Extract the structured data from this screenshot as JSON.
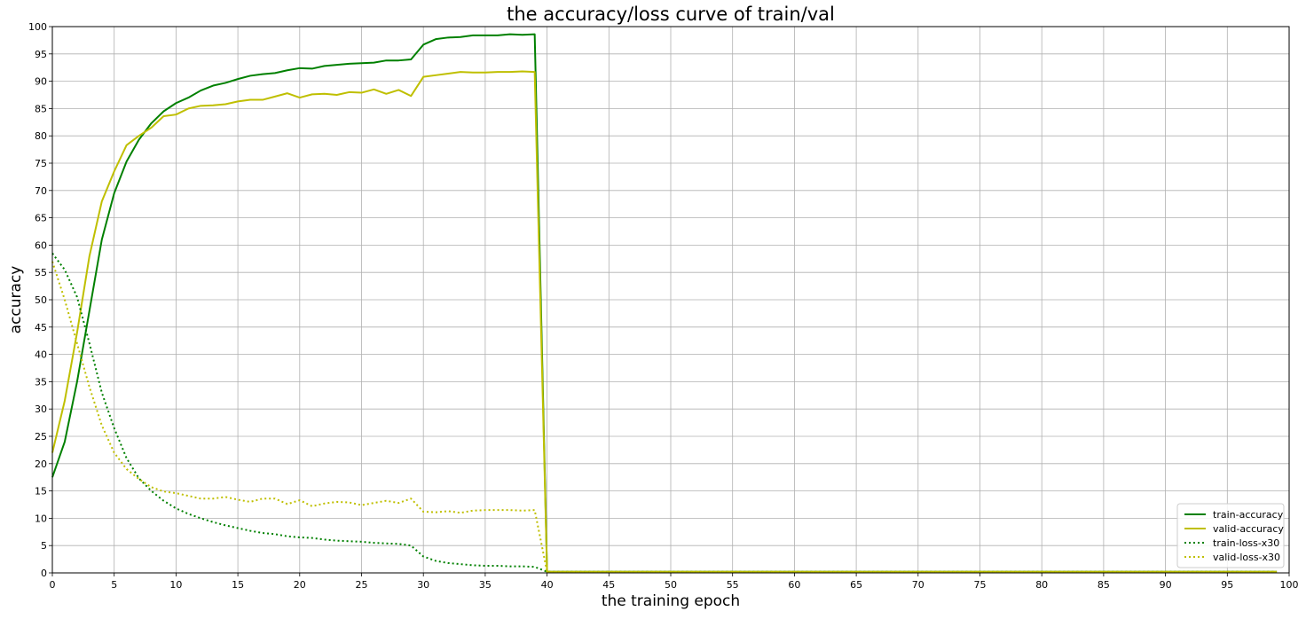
{
  "chart_data": {
    "type": "line",
    "title": "the accuracy/loss curve of train/val",
    "xlabel": "the training epoch",
    "ylabel": "accuracy",
    "xlim": [
      0,
      100
    ],
    "ylim": [
      0,
      100
    ],
    "xticks": [
      0,
      5,
      10,
      15,
      20,
      25,
      30,
      35,
      40,
      45,
      50,
      55,
      60,
      65,
      70,
      75,
      80,
      85,
      90,
      95,
      100
    ],
    "yticks": [
      0,
      5,
      10,
      15,
      20,
      25,
      30,
      35,
      40,
      45,
      50,
      55,
      60,
      65,
      70,
      75,
      80,
      85,
      90,
      95,
      100
    ],
    "grid": true,
    "legend_position": "lower-right",
    "x": [
      0,
      1,
      2,
      3,
      4,
      5,
      6,
      7,
      8,
      9,
      10,
      11,
      12,
      13,
      14,
      15,
      16,
      17,
      18,
      19,
      20,
      21,
      22,
      23,
      24,
      25,
      26,
      27,
      28,
      29,
      30,
      31,
      32,
      33,
      34,
      35,
      36,
      37,
      38,
      39,
      40,
      41,
      42,
      43,
      44,
      45,
      46,
      47,
      48,
      49,
      50,
      51,
      52,
      53,
      54,
      55,
      56,
      57,
      58,
      59,
      60,
      61,
      62,
      63,
      64,
      65,
      66,
      67,
      68,
      69,
      70,
      71,
      72,
      73,
      74,
      75,
      76,
      77,
      78,
      79,
      80,
      81,
      82,
      83,
      84,
      85,
      86,
      87,
      88,
      89,
      90,
      91,
      92,
      93,
      94,
      95,
      96,
      97,
      98,
      99
    ],
    "series": [
      {
        "name": "train-accuracy",
        "color": "#008000",
        "style": "solid",
        "values": [
          17.5,
          24,
          35,
          48,
          61,
          69.5,
          75.3,
          79.3,
          82.3,
          84.5,
          86,
          87,
          88.3,
          89.2,
          89.7,
          90.4,
          91,
          91.3,
          91.5,
          92,
          92.4,
          92.3,
          92.8,
          93,
          93.2,
          93.3,
          93.4,
          93.8,
          93.8,
          94,
          96.7,
          97.7,
          98,
          98.1,
          98.4,
          98.4,
          98.4,
          98.6,
          98.5,
          98.6,
          0.2,
          0.2,
          0.2,
          0.2,
          0.2,
          0.2,
          0.2,
          0.2,
          0.2,
          0.2,
          0.2,
          0.2,
          0.2,
          0.2,
          0.2,
          0.2,
          0.2,
          0.2,
          0.2,
          0.2,
          0.2,
          0.2,
          0.2,
          0.2,
          0.2,
          0.2,
          0.2,
          0.2,
          0.2,
          0.2,
          0.2,
          0.2,
          0.2,
          0.2,
          0.2,
          0.2,
          0.2,
          0.2,
          0.2,
          0.2,
          0.2,
          0.2,
          0.2,
          0.2,
          0.2,
          0.2,
          0.2,
          0.2,
          0.2,
          0.2,
          0.2,
          0.2,
          0.2,
          0.2,
          0.2,
          0.2,
          0.2,
          0.2,
          0.2,
          0.2
        ]
      },
      {
        "name": "valid-accuracy",
        "color": "#bfbf00",
        "style": "solid",
        "values": [
          22,
          31.5,
          44,
          58,
          68,
          73.5,
          78.3,
          80,
          81.5,
          83.6,
          83.9,
          85,
          85.5,
          85.6,
          85.8,
          86.3,
          86.6,
          86.6,
          87.2,
          87.8,
          87,
          87.6,
          87.7,
          87.5,
          88,
          87.9,
          88.5,
          87.7,
          88.4,
          87.3,
          90.8,
          91.1,
          91.4,
          91.7,
          91.6,
          91.6,
          91.7,
          91.7,
          91.8,
          91.7,
          0.2,
          0.2,
          0.2,
          0.2,
          0.2,
          0.2,
          0.2,
          0.2,
          0.2,
          0.2,
          0.2,
          0.2,
          0.2,
          0.2,
          0.2,
          0.2,
          0.2,
          0.2,
          0.2,
          0.2,
          0.2,
          0.2,
          0.2,
          0.2,
          0.2,
          0.2,
          0.2,
          0.2,
          0.2,
          0.2,
          0.2,
          0.2,
          0.2,
          0.2,
          0.2,
          0.2,
          0.2,
          0.2,
          0.2,
          0.2,
          0.2,
          0.2,
          0.2,
          0.2,
          0.2,
          0.2,
          0.2,
          0.2,
          0.2,
          0.2,
          0.2,
          0.2,
          0.2,
          0.2,
          0.2,
          0.2,
          0.2,
          0.2,
          0.2,
          0.2
        ]
      },
      {
        "name": "train-loss-x30",
        "color": "#008000",
        "style": "dotted",
        "values": [
          58.5,
          55.5,
          50.5,
          42,
          33,
          26.5,
          21,
          17.3,
          15,
          13.2,
          11.8,
          10.8,
          10,
          9.3,
          8.7,
          8.2,
          7.7,
          7.3,
          7.1,
          6.7,
          6.5,
          6.4,
          6.1,
          5.9,
          5.8,
          5.7,
          5.5,
          5.4,
          5.3,
          5,
          3,
          2.2,
          1.8,
          1.6,
          1.4,
          1.3,
          1.3,
          1.2,
          1.2,
          1.1,
          0.2,
          0.2,
          0.2,
          0.2,
          0.2,
          0.2,
          0.2,
          0.2,
          0.2,
          0.2,
          0.2,
          0.2,
          0.2,
          0.2,
          0.2,
          0.2,
          0.2,
          0.2,
          0.2,
          0.2,
          0.2,
          0.2,
          0.2,
          0.2,
          0.2,
          0.2,
          0.2,
          0.2,
          0.2,
          0.2,
          0.2,
          0.2,
          0.2,
          0.2,
          0.2,
          0.2,
          0.2,
          0.2,
          0.2,
          0.2,
          0.2,
          0.2,
          0.2,
          0.2,
          0.2,
          0.2,
          0.2,
          0.2,
          0.2,
          0.2,
          0.2,
          0.2,
          0.2,
          0.2,
          0.2,
          0.2,
          0.2,
          0.2,
          0.2,
          0.2
        ]
      },
      {
        "name": "valid-loss-x30",
        "color": "#bfbf00",
        "style": "dotted",
        "values": [
          57,
          50,
          42,
          34,
          27,
          22,
          19,
          17.2,
          15.7,
          14.9,
          14.6,
          14.1,
          13.6,
          13.6,
          13.9,
          13.4,
          13,
          13.6,
          13.6,
          12.6,
          13.3,
          12.2,
          12.7,
          13,
          12.9,
          12.4,
          12.8,
          13.2,
          12.8,
          13.6,
          11.2,
          11.1,
          11.3,
          11,
          11.4,
          11.5,
          11.5,
          11.5,
          11.4,
          11.5,
          0.2,
          0.2,
          0.2,
          0.2,
          0.2,
          0.2,
          0.2,
          0.2,
          0.2,
          0.2,
          0.2,
          0.2,
          0.2,
          0.2,
          0.2,
          0.2,
          0.2,
          0.2,
          0.2,
          0.2,
          0.2,
          0.2,
          0.2,
          0.2,
          0.2,
          0.2,
          0.2,
          0.2,
          0.2,
          0.2,
          0.2,
          0.2,
          0.2,
          0.2,
          0.2,
          0.2,
          0.2,
          0.2,
          0.2,
          0.2,
          0.2,
          0.2,
          0.2,
          0.2,
          0.2,
          0.2,
          0.2,
          0.2,
          0.2,
          0.2,
          0.2,
          0.2,
          0.2,
          0.2,
          0.2,
          0.2,
          0.2,
          0.2,
          0.2,
          0.2
        ]
      }
    ]
  }
}
